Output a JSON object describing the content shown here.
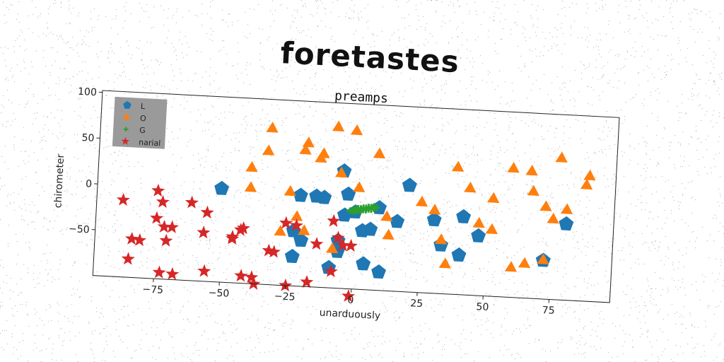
{
  "page": {
    "suptitle": "foretastes"
  },
  "chart_data": {
    "type": "scatter",
    "title": "preamps",
    "xlabel": "unarduously",
    "ylabel": "chirometer",
    "xlim": [
      -98,
      98
    ],
    "ylim": [
      -100,
      102
    ],
    "xticks": [
      -75,
      -50,
      -25,
      0,
      25,
      50,
      75
    ],
    "yticks": [
      -50,
      0,
      50,
      100
    ],
    "grid": false,
    "legend_position": "upper-left",
    "series": [
      {
        "name": "L",
        "marker": "pentagon",
        "color": "#1f77b4",
        "points": [
          [
            -51,
            2
          ],
          [
            -21,
            -1
          ],
          [
            -15,
            -1
          ],
          [
            -12,
            -2
          ],
          [
            -5,
            28
          ],
          [
            -3,
            3
          ],
          [
            -4,
            -20
          ],
          [
            0,
            -16
          ],
          [
            -23,
            -40
          ],
          [
            -20,
            -50
          ],
          [
            -6,
            -48
          ],
          [
            -6,
            -60
          ],
          [
            -23,
            -68
          ],
          [
            -9,
            -78
          ],
          [
            4,
            -72
          ],
          [
            10,
            -80
          ],
          [
            6,
            -34
          ],
          [
            3,
            -36
          ],
          [
            16,
            -24
          ],
          [
            20,
            16
          ],
          [
            30,
            -20
          ],
          [
            41,
            -15
          ],
          [
            47,
            -35
          ],
          [
            33,
            -47
          ],
          [
            40,
            -57
          ],
          [
            80,
            -17
          ],
          [
            72,
            -58
          ],
          [
            9,
            -10
          ]
        ]
      },
      {
        "name": "O",
        "marker": "triangle",
        "color": "#ff7f0e",
        "points": [
          [
            -33,
            70
          ],
          [
            -34,
            45
          ],
          [
            -20,
            48
          ],
          [
            -19,
            56
          ],
          [
            -13,
            45
          ],
          [
            -14,
            40
          ],
          [
            -8,
            75
          ],
          [
            -1,
            72
          ],
          [
            8,
            48
          ],
          [
            -6,
            25
          ],
          [
            1,
            10
          ],
          [
            -40,
            26
          ],
          [
            -40,
            4
          ],
          [
            -25,
            2
          ],
          [
            -22,
            -25
          ],
          [
            -28,
            -42
          ],
          [
            -19,
            -40
          ],
          [
            -8,
            -58
          ],
          [
            12,
            -20
          ],
          [
            13,
            -40
          ],
          [
            25,
            -2
          ],
          [
            30,
            -10
          ],
          [
            33,
            -42
          ],
          [
            35,
            -68
          ],
          [
            38,
            38
          ],
          [
            43,
            16
          ],
          [
            47,
            -22
          ],
          [
            52,
            6
          ],
          [
            52,
            -28
          ],
          [
            59,
            40
          ],
          [
            66,
            38
          ],
          [
            67,
            16
          ],
          [
            72,
            0
          ],
          [
            75,
            -13
          ],
          [
            77,
            54
          ],
          [
            80,
            -2
          ],
          [
            87,
            26
          ],
          [
            88,
            36
          ],
          [
            60,
            -68
          ],
          [
            65,
            -63
          ],
          [
            72,
            -58
          ]
        ]
      },
      {
        "name": "G",
        "marker": "plus",
        "color": "#2ca02c",
        "points": [
          [
            -2,
            -15
          ],
          [
            -1,
            -14
          ],
          [
            0,
            -14
          ],
          [
            1,
            -13
          ],
          [
            2,
            -13
          ],
          [
            3,
            -12
          ],
          [
            4,
            -12
          ],
          [
            5,
            -11
          ],
          [
            6,
            -11
          ],
          [
            7,
            -10
          ],
          [
            8,
            -10
          ],
          [
            -1,
            -15
          ],
          [
            0,
            -15
          ],
          [
            1,
            -14
          ],
          [
            2,
            -14
          ],
          [
            3,
            -13
          ],
          [
            4,
            -13
          ],
          [
            5,
            -12
          ],
          [
            6,
            -12
          ],
          [
            7,
            -11
          ],
          [
            0,
            -13
          ],
          [
            1,
            -12
          ],
          [
            2,
            -12
          ],
          [
            3,
            -11
          ],
          [
            4,
            -11
          ],
          [
            5,
            -10
          ],
          [
            6,
            -10
          ],
          [
            7,
            -9
          ]
        ]
      },
      {
        "name": "narial",
        "marker": "star",
        "color": "#d62728",
        "points": [
          [
            -88,
            -16
          ],
          [
            -75,
            -4
          ],
          [
            -73,
            -16
          ],
          [
            -62,
            -15
          ],
          [
            -56,
            -25
          ],
          [
            -75,
            -34
          ],
          [
            -72,
            -43
          ],
          [
            -69,
            -43
          ],
          [
            -57,
            -47
          ],
          [
            -84,
            -58
          ],
          [
            -81,
            -59
          ],
          [
            -71,
            -58
          ],
          [
            -46,
            -50
          ],
          [
            -46,
            -52
          ],
          [
            -42,
            -40
          ],
          [
            -43,
            -42
          ],
          [
            -32,
            -63
          ],
          [
            -30,
            -64
          ],
          [
            -26,
            -32
          ],
          [
            -22,
            -34
          ],
          [
            -14,
            -53
          ],
          [
            -8,
            -27
          ],
          [
            -6,
            -45
          ],
          [
            -4,
            -53
          ],
          [
            -1,
            -53
          ],
          [
            -85,
            -80
          ],
          [
            -73,
            -93
          ],
          [
            -68,
            -94
          ],
          [
            -56,
            -89
          ],
          [
            -42,
            -92
          ],
          [
            -38,
            -93
          ],
          [
            -37,
            -100
          ],
          [
            -25,
            -100
          ],
          [
            -17,
            -95
          ],
          [
            -8,
            -82
          ],
          [
            -1,
            -108
          ]
        ]
      }
    ]
  }
}
